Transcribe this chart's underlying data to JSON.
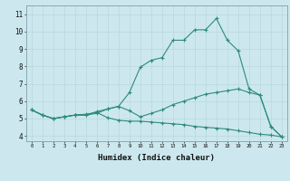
{
  "xlabel": "Humidex (Indice chaleur)",
  "xlim": [
    -0.5,
    23.5
  ],
  "ylim": [
    3.7,
    11.5
  ],
  "xticks": [
    0,
    1,
    2,
    3,
    4,
    5,
    6,
    7,
    8,
    9,
    10,
    11,
    12,
    13,
    14,
    15,
    16,
    17,
    18,
    19,
    20,
    21,
    22,
    23
  ],
  "yticks": [
    4,
    5,
    6,
    7,
    8,
    9,
    10,
    11
  ],
  "bg_color": "#cce8ee",
  "grid_color": "#b8d8de",
  "line_color": "#2e8b7a",
  "line1_x": [
    0,
    1,
    2,
    3,
    4,
    5,
    6,
    7,
    8,
    9,
    10,
    11,
    12,
    13,
    14,
    15,
    16,
    17,
    18,
    19,
    20,
    21,
    22,
    23
  ],
  "line1_y": [
    5.5,
    5.2,
    5.0,
    5.1,
    5.2,
    5.2,
    5.3,
    5.55,
    5.7,
    6.5,
    7.95,
    8.35,
    8.5,
    9.5,
    9.5,
    10.1,
    10.1,
    10.75,
    9.5,
    8.9,
    6.7,
    6.35,
    4.55,
    3.95
  ],
  "line2_x": [
    0,
    1,
    2,
    3,
    4,
    5,
    6,
    7,
    8,
    9,
    10,
    11,
    12,
    13,
    14,
    15,
    16,
    17,
    18,
    19,
    20,
    21,
    22,
    23
  ],
  "line2_y": [
    5.5,
    5.2,
    5.0,
    5.1,
    5.2,
    5.2,
    5.4,
    5.55,
    5.7,
    5.45,
    5.1,
    5.3,
    5.5,
    5.8,
    6.0,
    6.2,
    6.4,
    6.5,
    6.6,
    6.7,
    6.5,
    6.35,
    4.55,
    3.95
  ],
  "line3_x": [
    0,
    1,
    2,
    3,
    4,
    5,
    6,
    7,
    8,
    9,
    10,
    11,
    12,
    13,
    14,
    15,
    16,
    17,
    18,
    19,
    20,
    21,
    22,
    23
  ],
  "line3_y": [
    5.5,
    5.2,
    5.0,
    5.1,
    5.2,
    5.25,
    5.35,
    5.05,
    4.9,
    4.85,
    4.85,
    4.8,
    4.75,
    4.7,
    4.65,
    4.55,
    4.5,
    4.45,
    4.4,
    4.3,
    4.2,
    4.1,
    4.05,
    3.95
  ]
}
